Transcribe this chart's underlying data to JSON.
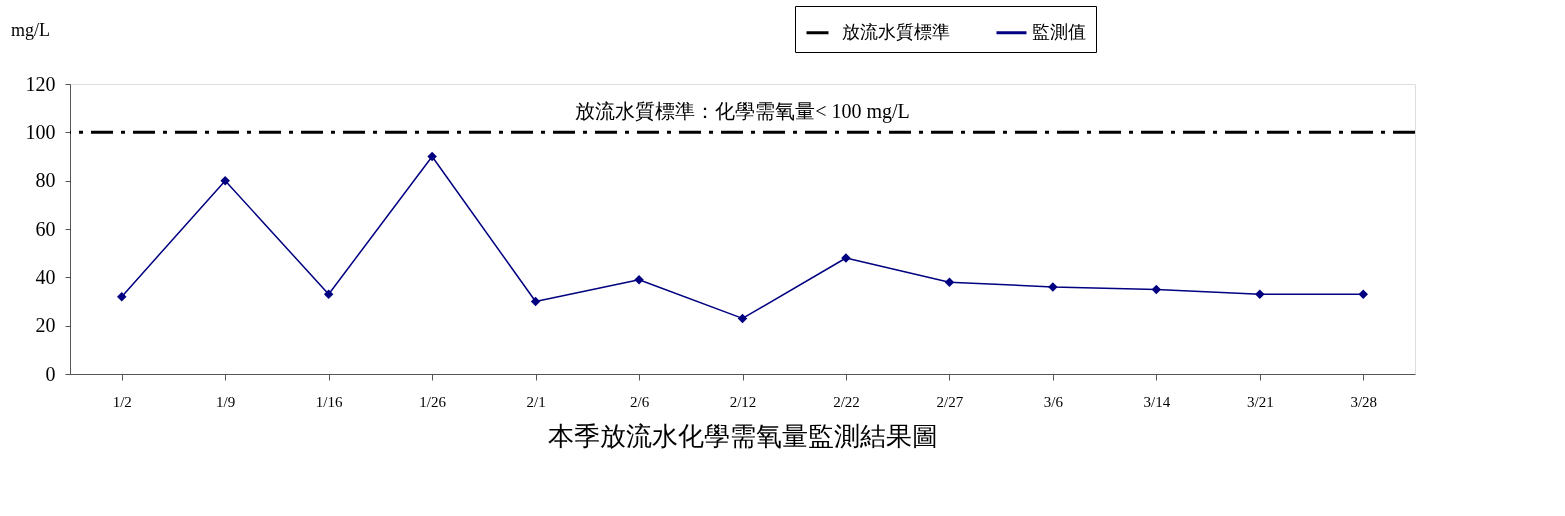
{
  "chart_data": {
    "type": "line",
    "xlabel": "本季放流水化學需氧量監測結果圖",
    "ylabel": "mg/L",
    "categories": [
      "1/2",
      "1/9",
      "1/16",
      "1/26",
      "2/1",
      "2/6",
      "2/12",
      "2/22",
      "2/27",
      "3/6",
      "3/14",
      "3/21",
      "3/28"
    ],
    "series": [
      {
        "name": "監測值",
        "color": "#000080",
        "values": [
          32,
          80,
          33,
          90,
          30,
          39,
          23,
          48,
          38,
          36,
          35,
          33,
          33
        ]
      }
    ],
    "ylim": [
      0,
      120
    ],
    "yticks": [
      0,
      20,
      40,
      60,
      80,
      100,
      120
    ],
    "ref_lines": [
      {
        "axis": "y",
        "value": 100,
        "label": "放流水質標準",
        "color": "#000000",
        "line_style": "dashdot"
      }
    ],
    "annotations": [
      {
        "text": "放流水質標準：化學需氧量< 100 mg/L",
        "y": 100
      }
    ],
    "marker": "diamond",
    "line_style": "solid",
    "grid": false,
    "legend": "top right"
  }
}
